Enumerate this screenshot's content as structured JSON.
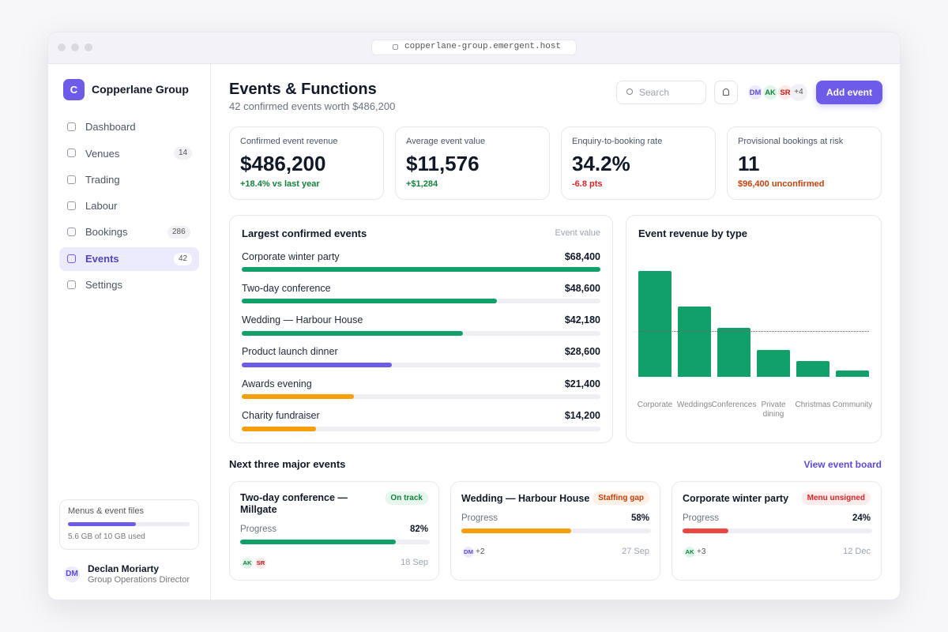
{
  "browser": {
    "url": "copperlane-group.emergent.host"
  },
  "sidebar": {
    "logo": "C",
    "org": "Copperlane Group",
    "nav": [
      {
        "label": "Dashboard"
      },
      {
        "label": "Venues",
        "count": 14
      },
      {
        "label": "Trading"
      },
      {
        "label": "Labour"
      },
      {
        "label": "Bookings",
        "count": 286
      },
      {
        "label": "Events",
        "count": 42,
        "active": true
      },
      {
        "label": "Settings"
      }
    ],
    "storage": {
      "title": "Menus & event files",
      "used": 5.6,
      "total": 10,
      "label": "5.6 GB of 10 GB used",
      "color": "#6c5ce7"
    },
    "user": {
      "initials": "DM",
      "name": "Declan Moriarty",
      "role": "Group Operations Director"
    }
  },
  "header": {
    "title": "Events & Functions",
    "subtitle": "42 confirmed events worth $486,200",
    "search": "Search",
    "avatars": [
      "DM",
      "AK",
      "SR"
    ],
    "more": "+4",
    "button": "Add event"
  },
  "kpis": [
    {
      "label": "Confirmed event revenue",
      "value": "$486,200",
      "note": "+18.4% vs last year",
      "tone": "positive"
    },
    {
      "label": "Average event value",
      "value": "$11,576",
      "note": "+$1,284",
      "tone": "positive"
    },
    {
      "label": "Enquiry-to-booking rate",
      "value": "34.2%",
      "note": "-6.8 pts",
      "tone": "negative"
    },
    {
      "label": "Provisional bookings at risk",
      "value": "11",
      "note": "$96,400 unconfirmed",
      "tone": "warning"
    }
  ],
  "largest": {
    "title": "Largest confirmed events",
    "column": "Event value",
    "categories": [
      "Corporate winter party",
      "Two-day conference",
      "Wedding — Harbour House",
      "Product launch dinner",
      "Awards evening",
      "Charity fundraiser"
    ],
    "values": [
      68400,
      48600,
      42180,
      28600,
      21400,
      14200
    ],
    "value_labels": [
      "$68,400",
      "$48,600",
      "$42,180",
      "$28,600",
      "$21,400",
      "$14,200"
    ],
    "colors": [
      "#12a06a",
      "#12a06a",
      "#12a06a",
      "#6c5ce7",
      "#f59e0b",
      "#f59e0b"
    ],
    "xlim": [
      0,
      68400
    ]
  },
  "revenue_by_type": {
    "type": "bar",
    "title": "Event revenue by type",
    "categories": [
      "Corporate",
      "Weddings",
      "Conferences",
      "Private dining",
      "Christmas",
      "Community"
    ],
    "values": [
      187000,
      125000,
      87000,
      48000,
      28000,
      11000
    ],
    "color": "#12a06a",
    "reference": 81000,
    "ylim": [
      0,
      200000
    ]
  },
  "upcoming": {
    "title": "Next three major events",
    "link": "View event board",
    "progress_label": "Progress",
    "progress_scale": [
      0,
      100
    ],
    "events": [
      {
        "title": "Two-day conference — Millgate",
        "status": "On track",
        "tone": "positive",
        "progress": 82,
        "progress_text": "82%",
        "avatars": [
          "AK",
          "SR"
        ],
        "date": "18 Sep",
        "color": "#12a06a"
      },
      {
        "title": "Wedding — Harbour House",
        "status": "Staffing gap",
        "tone": "warning",
        "progress": 58,
        "progress_text": "58%",
        "avatars": [
          "DM"
        ],
        "more": "+2",
        "date": "27 Sep",
        "color": "#f59e0b"
      },
      {
        "title": "Corporate winter party",
        "status": "Menu unsigned",
        "tone": "negative",
        "progress": 24,
        "progress_text": "24%",
        "avatars": [
          "AK"
        ],
        "more": "+3",
        "date": "12 Dec",
        "color": "#ef4444"
      }
    ]
  }
}
